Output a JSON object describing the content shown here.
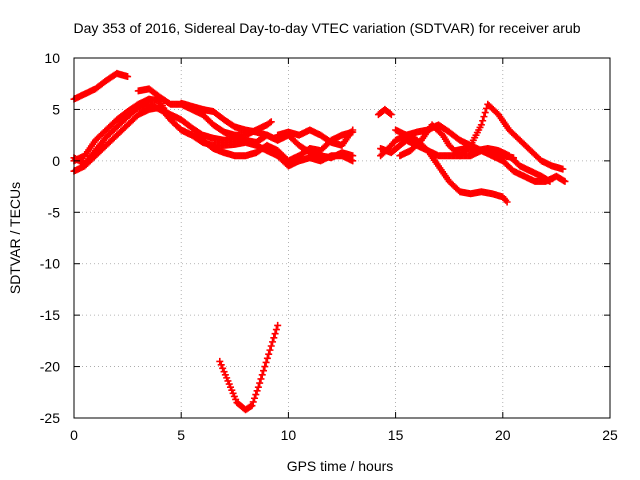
{
  "chart_data": {
    "type": "scatter",
    "title": "Day 353 of 2016, Sidereal Day-to-day VTEC variation (SDTVAR) for receiver arub",
    "xlabel": "GPS time / hours",
    "ylabel": "SDTVAR / TECUs",
    "xlim": [
      0,
      25
    ],
    "ylim": [
      -25,
      10
    ],
    "xticks": [
      "0",
      "5",
      "10",
      "15",
      "20",
      "25"
    ],
    "yticks": [
      "-25",
      "-20",
      "-15",
      "-10",
      "-5",
      "0",
      "5",
      "10"
    ],
    "grid": true,
    "marker_color": "#ff0000",
    "series": [
      {
        "name": "track-1",
        "points": [
          [
            0.0,
            6.0
          ],
          [
            0.5,
            6.5
          ],
          [
            1.0,
            7.0
          ],
          [
            1.5,
            7.8
          ],
          [
            2.0,
            8.5
          ],
          [
            2.5,
            8.2
          ]
        ]
      },
      {
        "name": "track-2",
        "points": [
          [
            0.0,
            0.0
          ],
          [
            0.5,
            0.5
          ],
          [
            1.0,
            2.0
          ],
          [
            1.5,
            3.0
          ],
          [
            2.0,
            4.0
          ],
          [
            2.5,
            4.8
          ],
          [
            3.0,
            5.5
          ],
          [
            3.5,
            6.0
          ],
          [
            4.0,
            5.8
          ],
          [
            4.5,
            4.0
          ],
          [
            5.0,
            3.0
          ],
          [
            5.5,
            2.5
          ],
          [
            6.0,
            1.8
          ],
          [
            6.5,
            1.5
          ],
          [
            7.0,
            1.5
          ],
          [
            7.5,
            1.6
          ],
          [
            8.0,
            1.8
          ],
          [
            8.5,
            1.5
          ],
          [
            9.0,
            1.0
          ],
          [
            9.5,
            0.5
          ]
        ]
      },
      {
        "name": "track-3",
        "points": [
          [
            0.0,
            -1.0
          ],
          [
            0.5,
            -0.5
          ],
          [
            1.0,
            0.5
          ],
          [
            1.5,
            1.5
          ],
          [
            2.0,
            2.5
          ],
          [
            2.5,
            3.5
          ],
          [
            3.0,
            4.5
          ],
          [
            3.5,
            5.0
          ],
          [
            4.0,
            5.2
          ],
          [
            4.5,
            4.0
          ],
          [
            5.0,
            3.0
          ],
          [
            5.5,
            2.5
          ],
          [
            6.0,
            2.0
          ],
          [
            6.5,
            1.2
          ],
          [
            7.0,
            0.8
          ],
          [
            7.5,
            0.5
          ],
          [
            8.0,
            0.5
          ],
          [
            8.5,
            0.8
          ],
          [
            9.0,
            1.5
          ],
          [
            9.5,
            1.0
          ]
        ]
      },
      {
        "name": "track-4",
        "points": [
          [
            0.0,
            0.3
          ],
          [
            0.5,
            -0.3
          ],
          [
            1.0,
            1.0
          ],
          [
            1.5,
            2.3
          ],
          [
            2.0,
            3.3
          ],
          [
            2.5,
            4.3
          ],
          [
            3.0,
            5.2
          ],
          [
            3.5,
            5.5
          ],
          [
            4.0,
            5.0
          ],
          [
            4.5,
            4.5
          ],
          [
            5.0,
            4.0
          ],
          [
            5.5,
            3.2
          ],
          [
            6.0,
            2.5
          ],
          [
            6.5,
            2.2
          ],
          [
            7.0,
            2.0
          ],
          [
            7.5,
            2.2
          ],
          [
            8.0,
            2.0
          ],
          [
            8.5,
            1.8
          ],
          [
            9.0,
            2.5
          ],
          [
            9.5,
            2.0
          ]
        ]
      },
      {
        "name": "track-5",
        "points": [
          [
            3.0,
            6.8
          ],
          [
            3.5,
            7.0
          ],
          [
            4.0,
            6.2
          ],
          [
            4.5,
            5.5
          ],
          [
            5.0,
            5.5
          ],
          [
            5.5,
            5.0
          ],
          [
            6.0,
            4.5
          ],
          [
            6.5,
            3.5
          ],
          [
            7.0,
            2.8
          ],
          [
            7.5,
            2.5
          ],
          [
            8.0,
            2.5
          ],
          [
            8.5,
            3.0
          ],
          [
            9.0,
            3.5
          ],
          [
            9.2,
            3.8
          ]
        ]
      },
      {
        "name": "track-6",
        "points": [
          [
            5.0,
            5.6
          ],
          [
            5.5,
            5.3
          ],
          [
            6.0,
            5.0
          ],
          [
            6.5,
            4.8
          ],
          [
            7.0,
            4.0
          ],
          [
            7.5,
            3.3
          ],
          [
            8.0,
            3.0
          ],
          [
            8.5,
            2.8
          ],
          [
            9.0,
            2.5
          ],
          [
            9.5,
            2.0
          ],
          [
            10.0,
            2.5
          ],
          [
            10.5,
            1.5
          ],
          [
            11.0,
            0.8
          ],
          [
            11.5,
            0.5
          ],
          [
            12.0,
            0.3
          ],
          [
            12.5,
            0.8
          ],
          [
            13.0,
            0.5
          ]
        ]
      },
      {
        "name": "track-7",
        "points": [
          [
            9.5,
            1.0
          ],
          [
            10.0,
            0.0
          ],
          [
            10.5,
            0.5
          ],
          [
            11.0,
            1.2
          ],
          [
            11.5,
            1.0
          ],
          [
            12.0,
            2.0
          ],
          [
            12.5,
            2.5
          ],
          [
            13.0,
            2.8
          ]
        ]
      },
      {
        "name": "track-8",
        "points": [
          [
            9.5,
            2.5
          ],
          [
            10.0,
            2.8
          ],
          [
            10.5,
            2.5
          ],
          [
            11.0,
            3.0
          ],
          [
            11.5,
            2.5
          ],
          [
            12.0,
            1.8
          ],
          [
            12.5,
            1.5
          ],
          [
            13.0,
            3.0
          ]
        ]
      },
      {
        "name": "track-9",
        "points": [
          [
            9.5,
            0.5
          ],
          [
            10.0,
            -0.5
          ],
          [
            10.5,
            0.0
          ],
          [
            11.0,
            0.3
          ],
          [
            11.5,
            0.0
          ],
          [
            12.0,
            0.5
          ],
          [
            12.5,
            0.5
          ],
          [
            13.0,
            0.0
          ]
        ]
      },
      {
        "name": "track-10",
        "points": [
          [
            6.8,
            -19.5
          ],
          [
            7.0,
            -20.5
          ],
          [
            7.3,
            -22.0
          ],
          [
            7.6,
            -23.5
          ],
          [
            8.0,
            -24.2
          ],
          [
            8.3,
            -23.8
          ],
          [
            8.6,
            -22.0
          ],
          [
            8.9,
            -20.0
          ],
          [
            9.2,
            -18.0
          ],
          [
            9.5,
            -16.0
          ]
        ]
      },
      {
        "name": "track-11",
        "points": [
          [
            14.2,
            4.5
          ],
          [
            14.5,
            5.0
          ],
          [
            14.8,
            4.5
          ]
        ]
      },
      {
        "name": "track-12",
        "points": [
          [
            14.3,
            0.5
          ],
          [
            14.8,
            1.5
          ],
          [
            15.0,
            2.0
          ],
          [
            15.5,
            2.5
          ],
          [
            16.0,
            2.8
          ],
          [
            16.5,
            3.0
          ],
          [
            17.0,
            3.5
          ],
          [
            17.5,
            2.8
          ],
          [
            18.0,
            2.0
          ],
          [
            18.5,
            1.5
          ],
          [
            19.0,
            1.0
          ],
          [
            19.5,
            0.8
          ],
          [
            20.0,
            0.5
          ],
          [
            20.5,
            0.3
          ]
        ]
      },
      {
        "name": "track-13",
        "points": [
          [
            14.3,
            1.2
          ],
          [
            14.8,
            0.8
          ],
          [
            15.2,
            1.5
          ],
          [
            15.5,
            2.0
          ],
          [
            16.0,
            1.5
          ],
          [
            16.5,
            1.0
          ],
          [
            17.0,
            0.5
          ],
          [
            17.5,
            0.5
          ],
          [
            18.0,
            0.5
          ],
          [
            18.5,
            0.5
          ],
          [
            19.0,
            1.0
          ],
          [
            19.5,
            0.5
          ],
          [
            20.0,
            0.0
          ],
          [
            20.5,
            -1.0
          ],
          [
            21.0,
            -1.5
          ],
          [
            21.5,
            -2.0
          ],
          [
            22.0,
            -2.0
          ],
          [
            22.5,
            -1.5
          ],
          [
            22.9,
            -2.0
          ]
        ]
      },
      {
        "name": "track-14",
        "points": [
          [
            15.0,
            3.0
          ],
          [
            15.5,
            2.5
          ],
          [
            16.0,
            2.0
          ],
          [
            16.5,
            1.0
          ],
          [
            17.0,
            -0.5
          ],
          [
            17.5,
            -2.0
          ],
          [
            18.0,
            -3.0
          ],
          [
            18.5,
            -3.2
          ],
          [
            19.0,
            -3.0
          ],
          [
            19.5,
            -3.2
          ],
          [
            20.0,
            -3.5
          ],
          [
            20.2,
            -4.0
          ]
        ]
      },
      {
        "name": "track-15",
        "points": [
          [
            15.2,
            0.5
          ],
          [
            15.7,
            1.0
          ],
          [
            16.2,
            2.0
          ],
          [
            16.7,
            3.5
          ],
          [
            17.2,
            2.5
          ],
          [
            17.5,
            1.5
          ],
          [
            18.0,
            0.5
          ],
          [
            18.5,
            1.5
          ],
          [
            19.0,
            3.5
          ],
          [
            19.3,
            5.5
          ],
          [
            19.8,
            4.5
          ],
          [
            20.3,
            3.0
          ],
          [
            20.8,
            2.0
          ],
          [
            21.3,
            1.0
          ],
          [
            21.8,
            0.0
          ],
          [
            22.3,
            -0.5
          ],
          [
            22.8,
            -0.8
          ]
        ]
      },
      {
        "name": "track-16",
        "points": [
          [
            17.8,
            1.0
          ],
          [
            18.3,
            1.2
          ],
          [
            18.8,
            1.0
          ],
          [
            19.3,
            1.2
          ],
          [
            19.8,
            1.0
          ],
          [
            20.3,
            0.5
          ],
          [
            20.8,
            -0.5
          ],
          [
            21.3,
            -1.0
          ],
          [
            21.8,
            -1.5
          ],
          [
            22.2,
            -2.0
          ]
        ]
      }
    ]
  }
}
